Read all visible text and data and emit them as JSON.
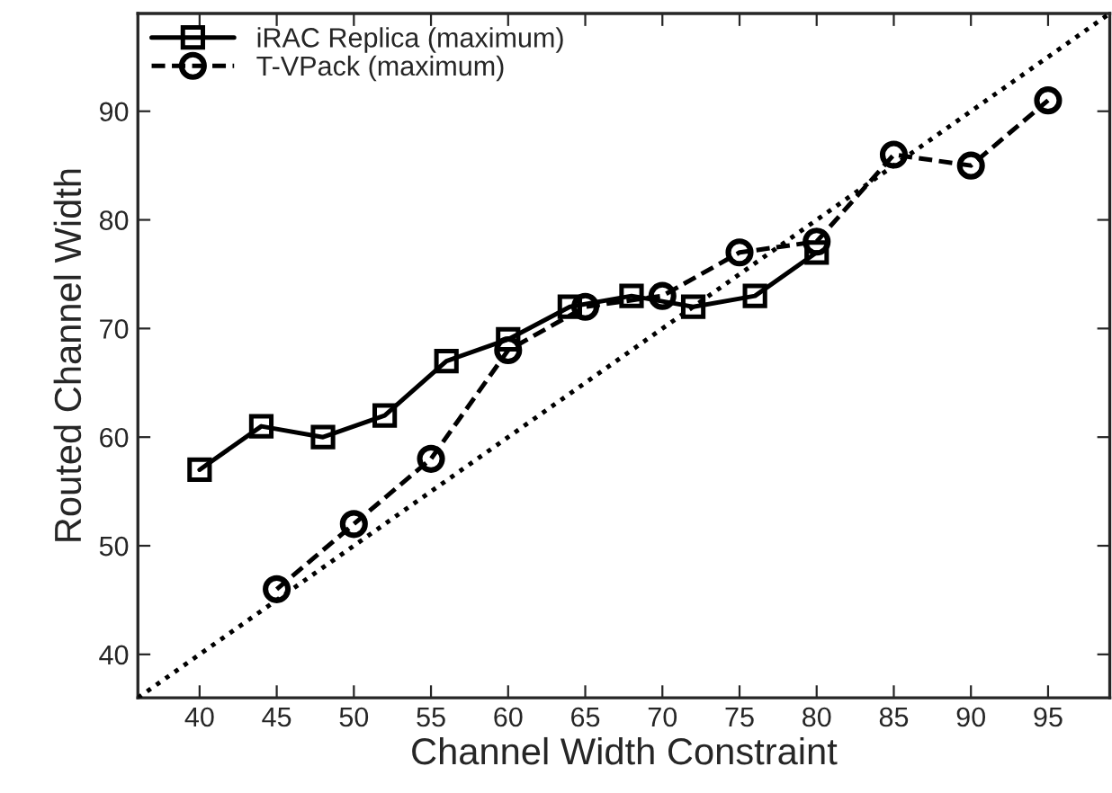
{
  "chart_data": {
    "type": "line",
    "xlabel": "Channel Width Constraint",
    "ylabel": "Routed Channel Width",
    "xlim": [
      36,
      99
    ],
    "ylim": [
      36,
      99
    ],
    "xticks": [
      40,
      45,
      50,
      55,
      60,
      65,
      70,
      75,
      80,
      85,
      90,
      95
    ],
    "yticks": [
      40,
      50,
      60,
      70,
      80,
      90
    ],
    "legend": "top left",
    "grid": false,
    "series": [
      {
        "name": "iRAC Replica (maximum)",
        "color": "#000000",
        "marker": "square",
        "line_style": "solid",
        "x": [
          40,
          44,
          48,
          52,
          56,
          60,
          64,
          68,
          72,
          76,
          80
        ],
        "values": [
          57,
          61,
          60,
          62,
          67,
          69,
          72,
          73,
          72,
          73,
          77
        ]
      },
      {
        "name": "T-VPack (maximum)",
        "color": "#000000",
        "marker": "circle",
        "line_style": "dashed",
        "x": [
          45,
          50,
          55,
          60,
          65,
          70,
          75,
          80,
          85,
          90,
          95
        ],
        "values": [
          46,
          52,
          58,
          68,
          72,
          73,
          77,
          78,
          86,
          85,
          91
        ]
      },
      {
        "color": "#000000",
        "marker": "none",
        "line_style": "dotted",
        "x": [
          36,
          99
        ],
        "values": [
          36,
          99
        ]
      }
    ]
  }
}
